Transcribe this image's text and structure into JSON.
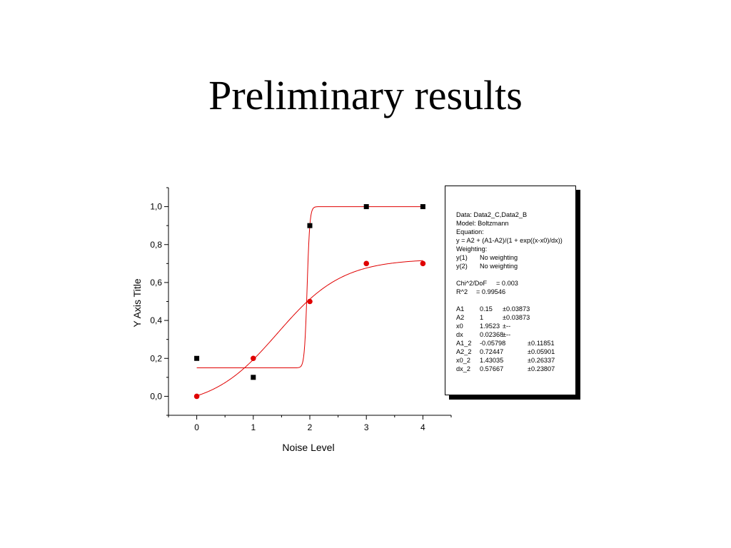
{
  "slide": {
    "title": "Preliminary results"
  },
  "chart_data": {
    "type": "scatter",
    "xlabel": "Noise Level",
    "ylabel": "Y Axis Title",
    "xlim": [
      -0.5,
      4.5
    ],
    "ylim": [
      -0.1,
      1.1
    ],
    "x_ticks": [
      0,
      1,
      2,
      3,
      4
    ],
    "y_ticks": [
      0.0,
      0.2,
      0.4,
      0.6,
      0.8,
      1.0
    ],
    "x_tick_labels": [
      "0",
      "1",
      "2",
      "3",
      "4"
    ],
    "y_tick_labels": [
      "0,0",
      "0,2",
      "0,4",
      "0,6",
      "0,8",
      "1,0"
    ],
    "grid": false,
    "series": [
      {
        "marker": "square",
        "color": "#000000",
        "x": [
          0,
          1,
          2,
          3,
          4
        ],
        "y": [
          0.2,
          0.1,
          0.9,
          1.0,
          1.0
        ]
      },
      {
        "marker": "circle",
        "color": "#e00000",
        "x": [
          0,
          1,
          2,
          3,
          4
        ],
        "y": [
          0.0,
          0.2,
          0.5,
          0.7,
          0.7
        ]
      }
    ],
    "fits": [
      {
        "model": "boltzmann",
        "A1": 0.15,
        "A2": 1,
        "x0": 1.9523,
        "dx": 0.02368,
        "color": "#e00000"
      },
      {
        "model": "boltzmann",
        "A1": -0.05798,
        "A2": 0.72447,
        "x0": 1.43035,
        "dx": 0.57667,
        "color": "#e00000"
      }
    ]
  },
  "fit_box": {
    "header": [
      "Data: Data2_C,Data2_B",
      "Model: Boltzmann",
      "Equation:",
      "y = A2 + (A1-A2)/(1 + exp((x-x0)/dx))",
      "Weighting:"
    ],
    "weighting": [
      {
        "label": "y(1)",
        "value": "No weighting"
      },
      {
        "label": "y(2)",
        "value": "No weighting"
      }
    ],
    "stats": [
      {
        "label": "Chi^2/DoF",
        "value": "= 0.003"
      },
      {
        "label": "R^2",
        "value": "=  0.99546"
      }
    ],
    "params": [
      {
        "name": "A1",
        "value": "0.15",
        "err": "±0.03873"
      },
      {
        "name": "A2",
        "value": "1",
        "err": "±0.03873"
      },
      {
        "name": "x0",
        "value": "1.9523",
        "err": "±--"
      },
      {
        "name": "dx",
        "value": "0.02368",
        "err": "±--"
      },
      {
        "name": "A1_2",
        "value": "-0.05798",
        "err": "±0.11851"
      },
      {
        "name": "A2_2",
        "value": "0.72447",
        "err": "±0.05901"
      },
      {
        "name": "x0_2",
        "value": "1.43035",
        "err": "±0.26337"
      },
      {
        "name": "dx_2",
        "value": "0.57667",
        "err": "±0.23807"
      }
    ]
  }
}
